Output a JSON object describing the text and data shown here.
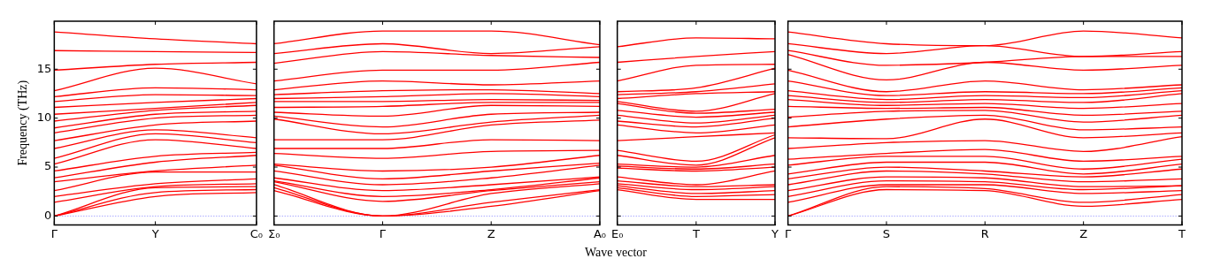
{
  "chart_data": [
    {
      "type": "line",
      "ylabel": "Frequency (THz)",
      "categories": [
        "Γ",
        "Y",
        "C₀"
      ],
      "ylim": [
        -0.9,
        19.9
      ],
      "yticks": [
        0,
        5,
        10,
        15
      ],
      "grid": false,
      "legend": false,
      "line_style": "solid",
      "ref_lines": [
        {
          "axis": "y",
          "value": 0,
          "color": "#8080ff",
          "line_style": "dotted"
        }
      ],
      "series": [
        {
          "color": "#ff0000",
          "values": [
            0,
            2.0,
            2.4
          ]
        },
        {
          "color": "#ff0000",
          "values": [
            0,
            2.4,
            2.7
          ]
        },
        {
          "color": "#ff0000",
          "values": [
            0,
            2.9,
            3.0
          ]
        },
        {
          "color": "#ff0000",
          "values": [
            1.4,
            3.0,
            3.3
          ]
        },
        {
          "color": "#ff0000",
          "values": [
            2.0,
            3.3,
            3.8
          ]
        },
        {
          "color": "#ff0000",
          "values": [
            2.6,
            4.5,
            4.5
          ]
        },
        {
          "color": "#ff0000",
          "values": [
            3.5,
            4.6,
            5.2
          ]
        },
        {
          "color": "#ff0000",
          "values": [
            3.9,
            5.5,
            6.2
          ]
        },
        {
          "color": "#ff0000",
          "values": [
            4.6,
            6.1,
            6.5
          ]
        },
        {
          "color": "#ff0000",
          "values": [
            5.3,
            7.8,
            6.9
          ]
        },
        {
          "color": "#ff0000",
          "values": [
            5.9,
            8.4,
            7.5
          ]
        },
        {
          "color": "#ff0000",
          "values": [
            6.9,
            8.8,
            8.0
          ]
        },
        {
          "color": "#ff0000",
          "values": [
            7.7,
            9.3,
            9.7
          ]
        },
        {
          "color": "#ff0000",
          "values": [
            8.5,
            10.0,
            10.3
          ]
        },
        {
          "color": "#ff0000",
          "values": [
            9.0,
            10.4,
            10.7
          ]
        },
        {
          "color": "#ff0000",
          "values": [
            9.7,
            10.8,
            11.3
          ]
        },
        {
          "color": "#ff0000",
          "values": [
            10.4,
            11.0,
            11.6
          ]
        },
        {
          "color": "#ff0000",
          "values": [
            11.1,
            11.6,
            12.0
          ]
        },
        {
          "color": "#ff0000",
          "values": [
            11.7,
            12.4,
            12.3
          ]
        },
        {
          "color": "#ff0000",
          "values": [
            12.2,
            13.1,
            12.9
          ]
        },
        {
          "color": "#ff0000",
          "values": [
            12.8,
            15.1,
            13.5
          ]
        },
        {
          "color": "#ff0000",
          "values": [
            14.9,
            15.5,
            15.7
          ]
        },
        {
          "color": "#ff0000",
          "values": [
            16.9,
            16.8,
            16.7
          ]
        },
        {
          "color": "#ff0000",
          "values": [
            18.8,
            18.1,
            17.6
          ]
        }
      ]
    },
    {
      "type": "line",
      "categories": [
        "Σ₀",
        "Γ",
        "Z",
        "A₀"
      ],
      "ylim": [
        -0.9,
        19.9
      ],
      "yticks": [
        0,
        5,
        10,
        15
      ],
      "tick_labels": "x",
      "grid": false,
      "legend": false,
      "line_style": "solid",
      "xlabel": "Wave vector",
      "ref_lines": [
        {
          "axis": "y",
          "value": 0,
          "color": "#8080ff",
          "line_style": "dotted"
        }
      ],
      "series": [
        {
          "color": "#ff0000",
          "values": [
            2.6,
            0,
            1.0,
            2.6
          ]
        },
        {
          "color": "#ff0000",
          "values": [
            2.9,
            0,
            1.4,
            2.7
          ]
        },
        {
          "color": "#ff0000",
          "values": [
            3.2,
            0,
            2.3,
            3.3
          ]
        },
        {
          "color": "#ff0000",
          "values": [
            3.5,
            1.5,
            2.6,
            3.5
          ]
        },
        {
          "color": "#ff0000",
          "values": [
            3.6,
            2.0,
            2.7,
            3.9
          ]
        },
        {
          "color": "#ff0000",
          "values": [
            3.9,
            2.6,
            3.2,
            4.0
          ]
        },
        {
          "color": "#ff0000",
          "values": [
            4.6,
            3.2,
            3.9,
            5.2
          ]
        },
        {
          "color": "#ff0000",
          "values": [
            5.2,
            3.8,
            4.6,
            5.4
          ]
        },
        {
          "color": "#ff0000",
          "values": [
            5.3,
            4.6,
            5.0,
            6.2
          ]
        },
        {
          "color": "#ff0000",
          "values": [
            6.4,
            5.9,
            6.6,
            6.7
          ]
        },
        {
          "color": "#ff0000",
          "values": [
            6.9,
            6.9,
            7.8,
            7.7
          ]
        },
        {
          "color": "#ff0000",
          "values": [
            7.8,
            7.8,
            9.3,
            9.8
          ]
        },
        {
          "color": "#ff0000",
          "values": [
            9.9,
            8.4,
            9.6,
            10.3
          ]
        },
        {
          "color": "#ff0000",
          "values": [
            10.2,
            9.1,
            10.4,
            10.6
          ]
        },
        {
          "color": "#ff0000",
          "values": [
            10.6,
            10.2,
            11.3,
            11.2
          ]
        },
        {
          "color": "#ff0000",
          "values": [
            11.1,
            11.2,
            11.6,
            11.6
          ]
        },
        {
          "color": "#ff0000",
          "values": [
            11.7,
            11.7,
            11.9,
            11.8
          ]
        },
        {
          "color": "#ff0000",
          "values": [
            12.0,
            12.2,
            12.5,
            12.2
          ]
        },
        {
          "color": "#ff0000",
          "values": [
            12.4,
            12.8,
            12.9,
            12.5
          ]
        },
        {
          "color": "#ff0000",
          "values": [
            12.9,
            13.8,
            13.4,
            13.8
          ]
        },
        {
          "color": "#ff0000",
          "values": [
            13.8,
            14.9,
            14.9,
            15.7
          ]
        },
        {
          "color": "#ff0000",
          "values": [
            15.6,
            16.8,
            16.4,
            16.2
          ]
        },
        {
          "color": "#ff0000",
          "values": [
            16.6,
            17.6,
            16.6,
            17.3
          ]
        },
        {
          "color": "#ff0000",
          "values": [
            17.6,
            18.9,
            18.9,
            17.5
          ]
        }
      ]
    },
    {
      "type": "line",
      "categories": [
        "E₀",
        "T",
        "Y"
      ],
      "ylim": [
        -0.9,
        19.9
      ],
      "yticks": [
        0,
        5,
        10,
        15
      ],
      "tick_labels": "x",
      "grid": false,
      "legend": false,
      "line_style": "solid",
      "ref_lines": [
        {
          "axis": "y",
          "value": 0,
          "color": "#8080ff",
          "line_style": "dotted"
        }
      ],
      "series": [
        {
          "color": "#ff0000",
          "values": [
            2.7,
            1.7,
            1.7
          ]
        },
        {
          "color": "#ff0000",
          "values": [
            2.9,
            2.0,
            2.2
          ]
        },
        {
          "color": "#ff0000",
          "values": [
            3.1,
            2.3,
            2.6
          ]
        },
        {
          "color": "#ff0000",
          "values": [
            3.3,
            2.7,
            3.0
          ]
        },
        {
          "color": "#ff0000",
          "values": [
            3.6,
            3.0,
            3.2
          ]
        },
        {
          "color": "#ff0000",
          "values": [
            4.0,
            3.2,
            4.6
          ]
        },
        {
          "color": "#ff0000",
          "values": [
            4.9,
            4.6,
            5.0
          ]
        },
        {
          "color": "#ff0000",
          "values": [
            5.1,
            4.8,
            5.3
          ]
        },
        {
          "color": "#ff0000",
          "values": [
            5.3,
            5.0,
            6.2
          ]
        },
        {
          "color": "#ff0000",
          "values": [
            6.2,
            5.2,
            8.0
          ]
        },
        {
          "color": "#ff0000",
          "values": [
            6.7,
            5.6,
            8.3
          ]
        },
        {
          "color": "#ff0000",
          "values": [
            7.7,
            8.1,
            8.5
          ]
        },
        {
          "color": "#ff0000",
          "values": [
            9.3,
            8.5,
            9.3
          ]
        },
        {
          "color": "#ff0000",
          "values": [
            9.7,
            9.1,
            10.0
          ]
        },
        {
          "color": "#ff0000",
          "values": [
            10.3,
            9.5,
            10.3
          ]
        },
        {
          "color": "#ff0000",
          "values": [
            10.8,
            10.1,
            10.6
          ]
        },
        {
          "color": "#ff0000",
          "values": [
            11.5,
            10.5,
            10.9
          ]
        },
        {
          "color": "#ff0000",
          "values": [
            11.7,
            10.7,
            12.5
          ]
        },
        {
          "color": "#ff0000",
          "values": [
            12.0,
            12.5,
            12.7
          ]
        },
        {
          "color": "#ff0000",
          "values": [
            12.4,
            12.7,
            13.5
          ]
        },
        {
          "color": "#ff0000",
          "values": [
            12.7,
            13.1,
            15.1
          ]
        },
        {
          "color": "#ff0000",
          "values": [
            13.8,
            15.4,
            15.5
          ]
        },
        {
          "color": "#ff0000",
          "values": [
            15.7,
            16.3,
            16.8
          ]
        },
        {
          "color": "#ff0000",
          "values": [
            17.3,
            18.2,
            18.1
          ]
        }
      ]
    },
    {
      "type": "line",
      "categories": [
        "Γ",
        "S",
        "R",
        "Z",
        "T"
      ],
      "ylim": [
        -0.9,
        19.9
      ],
      "yticks": [
        0,
        5,
        10,
        15
      ],
      "tick_labels": "x",
      "grid": false,
      "legend": false,
      "line_style": "solid",
      "ref_lines": [
        {
          "axis": "y",
          "value": 0,
          "color": "#8080ff",
          "line_style": "dotted"
        }
      ],
      "series": [
        {
          "color": "#ff0000",
          "values": [
            0,
            2.7,
            2.6,
            1.0,
            1.7
          ]
        },
        {
          "color": "#ff0000",
          "values": [
            0,
            3.0,
            2.8,
            1.4,
            2.2
          ]
        },
        {
          "color": "#ff0000",
          "values": [
            1.4,
            3.2,
            3.2,
            2.3,
            2.6
          ]
        },
        {
          "color": "#ff0000",
          "values": [
            2.0,
            3.6,
            3.5,
            2.7,
            3.1
          ]
        },
        {
          "color": "#ff0000",
          "values": [
            2.6,
            4.0,
            3.9,
            3.0,
            3.1
          ]
        },
        {
          "color": "#ff0000",
          "values": [
            3.2,
            4.6,
            4.3,
            3.5,
            3.8
          ]
        },
        {
          "color": "#ff0000",
          "values": [
            3.8,
            5.0,
            4.6,
            4.0,
            4.8
          ]
        },
        {
          "color": "#ff0000",
          "values": [
            4.3,
            5.5,
            5.5,
            4.3,
            5.3
          ]
        },
        {
          "color": "#ff0000",
          "values": [
            5.2,
            6.1,
            6.1,
            4.8,
            5.8
          ]
        },
        {
          "color": "#ff0000",
          "values": [
            5.8,
            6.4,
            6.8,
            5.6,
            6.1
          ]
        },
        {
          "color": "#ff0000",
          "values": [
            6.9,
            7.5,
            7.7,
            6.6,
            8.1
          ]
        },
        {
          "color": "#ff0000",
          "values": [
            8.0,
            7.9,
            9.9,
            8.0,
            8.5
          ]
        },
        {
          "color": "#ff0000",
          "values": [
            9.1,
            9.9,
            10.3,
            8.8,
            9.1
          ]
        },
        {
          "color": "#ff0000",
          "values": [
            10.1,
            10.7,
            10.8,
            9.6,
            10.3
          ]
        },
        {
          "color": "#ff0000",
          "values": [
            11.2,
            11.0,
            11.1,
            10.3,
            10.7
          ]
        },
        {
          "color": "#ff0000",
          "values": [
            11.9,
            11.3,
            11.5,
            11.0,
            11.5
          ]
        },
        {
          "color": "#ff0000",
          "values": [
            12.3,
            11.6,
            11.9,
            11.6,
            12.5
          ]
        },
        {
          "color": "#ff0000",
          "values": [
            12.8,
            11.9,
            12.3,
            12.1,
            12.8
          ]
        },
        {
          "color": "#ff0000",
          "values": [
            13.8,
            12.3,
            12.7,
            12.5,
            13.1
          ]
        },
        {
          "color": "#ff0000",
          "values": [
            14.9,
            12.7,
            13.8,
            12.9,
            13.4
          ]
        },
        {
          "color": "#ff0000",
          "values": [
            16.5,
            13.9,
            15.7,
            14.9,
            15.4
          ]
        },
        {
          "color": "#ff0000",
          "values": [
            16.9,
            15.4,
            15.7,
            16.3,
            16.3
          ]
        },
        {
          "color": "#ff0000",
          "values": [
            17.6,
            16.6,
            17.4,
            16.3,
            16.8
          ]
        },
        {
          "color": "#ff0000",
          "values": [
            18.8,
            17.6,
            17.4,
            18.9,
            18.2
          ]
        }
      ]
    }
  ]
}
